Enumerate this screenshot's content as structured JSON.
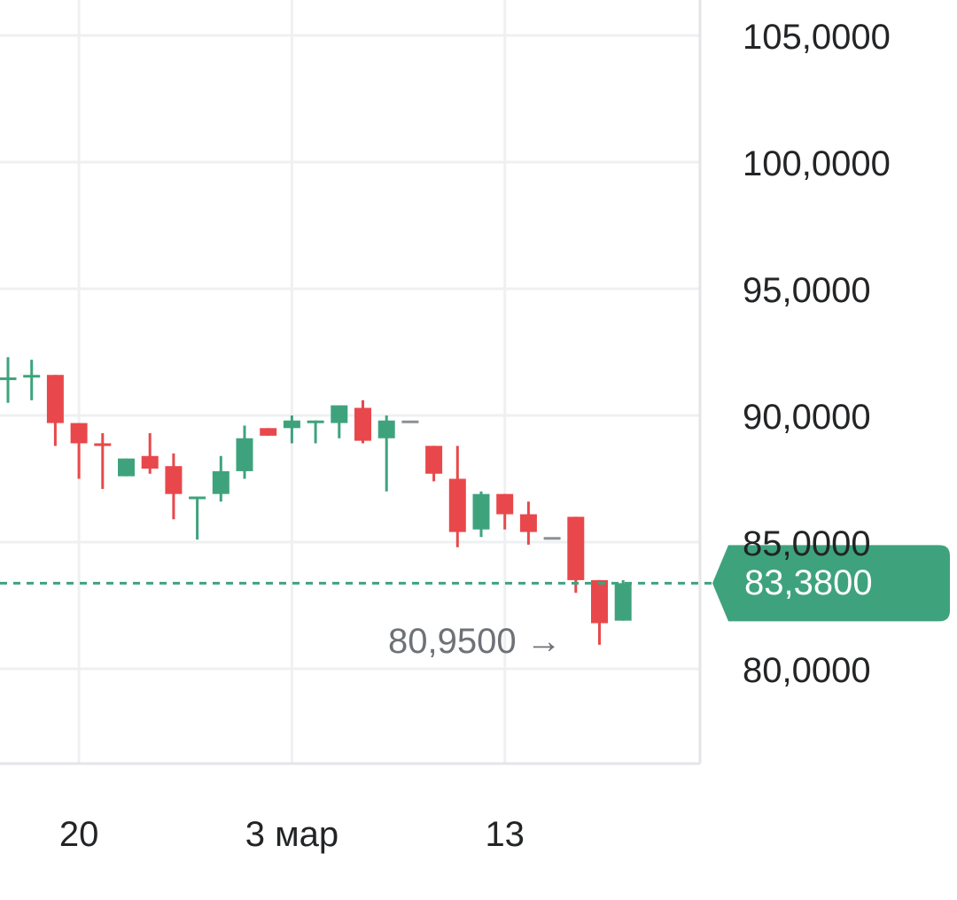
{
  "chart_data": {
    "type": "candlestick",
    "y_axis": {
      "ticks": [
        80,
        85,
        90,
        95,
        100,
        105
      ],
      "tick_labels": [
        "80,0000",
        "85,0000",
        "90,0000",
        "95,0000",
        "100,0000",
        "105,0000"
      ],
      "range": [
        77.5,
        106.2
      ]
    },
    "x_axis": {
      "ticks": [
        {
          "label": "20",
          "index": 3
        },
        {
          "label": "3 мар",
          "index": 12
        },
        {
          "label": "13",
          "index": 21
        }
      ]
    },
    "grid": true,
    "current_price": {
      "value": 83.38,
      "label": "83,3800",
      "color": "#3ea37d"
    },
    "min_annotation": {
      "value": 80.95,
      "label": "80,9500"
    },
    "colors": {
      "up": "#3ea37d",
      "down": "#e8484b",
      "flat": "#8c8f93",
      "grid": "#eef0f2",
      "axis": "#e3e5e8"
    },
    "candles": [
      {
        "o": 91.4,
        "h": 92.3,
        "l": 90.5,
        "c": 91.5
      },
      {
        "o": 91.5,
        "h": 92.2,
        "l": 90.6,
        "c": 91.6
      },
      {
        "o": 91.6,
        "h": 91.6,
        "l": 88.8,
        "c": 89.7
      },
      {
        "o": 89.7,
        "h": 89.7,
        "l": 87.5,
        "c": 88.9
      },
      {
        "o": 88.9,
        "h": 89.3,
        "l": 87.1,
        "c": 88.8
      },
      {
        "o": 87.6,
        "h": 88.3,
        "l": 87.6,
        "c": 88.3
      },
      {
        "o": 88.4,
        "h": 89.3,
        "l": 87.7,
        "c": 87.9
      },
      {
        "o": 88.0,
        "h": 88.5,
        "l": 85.9,
        "c": 86.9
      },
      {
        "o": 86.7,
        "h": 86.8,
        "l": 85.1,
        "c": 86.8
      },
      {
        "o": 86.9,
        "h": 88.4,
        "l": 86.6,
        "c": 87.8
      },
      {
        "o": 87.8,
        "h": 89.6,
        "l": 87.5,
        "c": 89.1
      },
      {
        "o": 89.5,
        "h": 89.5,
        "l": 89.2,
        "c": 89.2
      },
      {
        "o": 89.5,
        "h": 90.0,
        "l": 88.9,
        "c": 89.8
      },
      {
        "o": 89.7,
        "h": 89.8,
        "l": 88.9,
        "c": 89.8
      },
      {
        "o": 89.7,
        "h": 90.4,
        "l": 89.1,
        "c": 90.4
      },
      {
        "o": 90.3,
        "h": 90.6,
        "l": 88.9,
        "c": 89.0
      },
      {
        "o": 89.1,
        "h": 90.0,
        "l": 87.0,
        "c": 89.8
      },
      {
        "o": 89.8,
        "h": 89.8,
        "l": 89.8,
        "c": 89.8
      },
      {
        "o": 88.8,
        "h": 88.8,
        "l": 87.4,
        "c": 87.7
      },
      {
        "o": 87.5,
        "h": 88.8,
        "l": 84.8,
        "c": 85.4
      },
      {
        "o": 85.5,
        "h": 87.0,
        "l": 85.2,
        "c": 86.9
      },
      {
        "o": 86.9,
        "h": 86.9,
        "l": 85.5,
        "c": 86.1
      },
      {
        "o": 86.1,
        "h": 86.6,
        "l": 84.9,
        "c": 85.4
      },
      {
        "o": 85.2,
        "h": 85.2,
        "l": 85.2,
        "c": 85.2
      },
      {
        "o": 86.0,
        "h": 86.0,
        "l": 83.0,
        "c": 83.5
      },
      {
        "o": 83.5,
        "h": 83.5,
        "l": 80.95,
        "c": 81.8
      },
      {
        "o": 81.9,
        "h": 83.5,
        "l": 81.9,
        "c": 83.38
      }
    ]
  }
}
